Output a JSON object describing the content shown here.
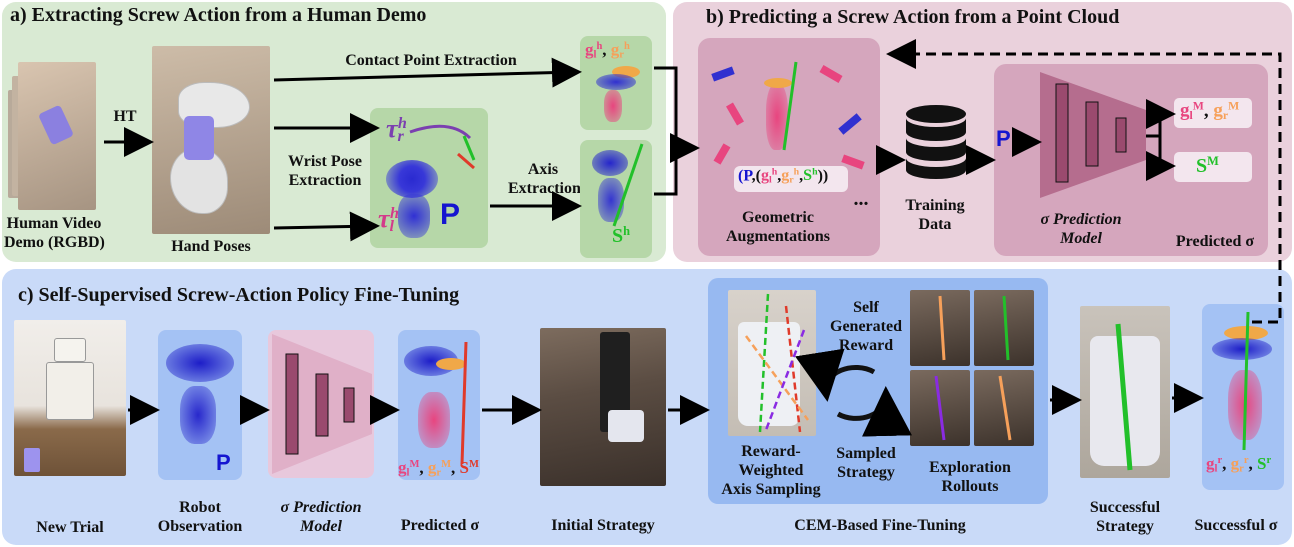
{
  "panels": {
    "a": {
      "title": "a)  Extracting Screw Action from a Human Demo"
    },
    "b": {
      "title": "b)  Predicting a Screw Action from a Point Cloud"
    },
    "c": {
      "title": "c)  Self-Supervised Screw-Action Policy Fine-Tuning"
    }
  },
  "labels": {
    "human_video_l1": "Human Video",
    "human_video_l2": "Demo (RGBD)",
    "ht": "HT",
    "hand_poses": "Hand Poses",
    "contact_point_extraction": "Contact Point Extraction",
    "wrist_pose_l1": "Wrist Pose",
    "wrist_pose_l2": "Extraction",
    "axis_l1": "Axis",
    "axis_l2": "Extraction",
    "geo_aug_l1": "Geometric",
    "geo_aug_l2": "Augmentations",
    "ellipsis": "...",
    "training_l1": "Training",
    "training_l2": "Data",
    "pred_model_b_l1": "σ Prediction",
    "pred_model_b_l2": "Model",
    "predicted_sigma_b": "Predicted σ",
    "new_trial": "New Trial",
    "robot_obs_l1": "Robot",
    "robot_obs_l2": "Observation",
    "pred_model_c_l1": "σ Prediction",
    "pred_model_c_l2": "Model",
    "predicted_sigma_c": "Predicted σ",
    "initial_strategy": "Initial Strategy",
    "self_gen_l1": "Self",
    "self_gen_l2": "Generated",
    "self_gen_l3": "Reward",
    "sampled_l1": "Sampled",
    "sampled_l2": "Strategy",
    "reward_weighted_l1": "Reward-",
    "reward_weighted_l2": "Weighted",
    "reward_weighted_l3": "Axis Sampling",
    "exploration_l1": "Exploration",
    "exploration_l2": "Rollouts",
    "cem": "CEM-Based Fine-Tuning",
    "successful_strategy_l1": "Successful",
    "successful_strategy_l2": "Strategy",
    "successful_sigma": "Successful σ"
  },
  "symbols": {
    "tau": "τ",
    "r": "r",
    "l": "l",
    "h": "h",
    "P": "P",
    "g": "g",
    "S": "S",
    "M": "M",
    "comma": ",",
    "lparen": "(",
    "rparen": ")"
  },
  "colors": {
    "panel_a": "#d9ead3",
    "panel_b": "#ead1dc",
    "panel_c": "#c9daf8",
    "inner_green": "#b6d7a8",
    "inner_pink": "#d5a6bd",
    "inner_blue": "#a4c2f4",
    "g_left": "#e8457f",
    "g_right": "#f6a05a",
    "screw_green": "#22c02a",
    "screw_red": "#e03a2a",
    "p_blue": "#1515d0"
  }
}
